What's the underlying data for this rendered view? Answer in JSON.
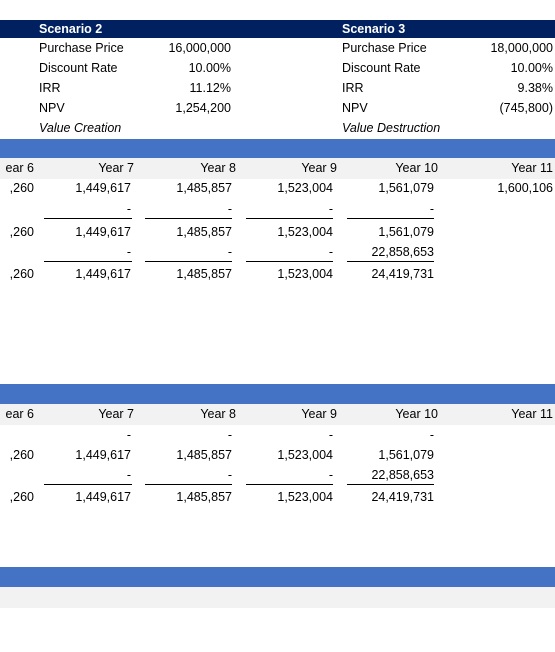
{
  "scenarios": [
    {
      "title": "Scenario 2",
      "rows": [
        [
          "Purchase Price",
          "16,000,000"
        ],
        [
          "Discount Rate",
          "10.00%"
        ],
        [
          "IRR",
          "11.12%"
        ],
        [
          "NPV",
          "1,254,200"
        ]
      ],
      "note": "Value Creation"
    },
    {
      "title": "Scenario 3",
      "rows": [
        [
          "Purchase Price",
          "18,000,000"
        ],
        [
          "Discount Rate",
          "10.00%"
        ],
        [
          "IRR",
          "9.38%"
        ],
        [
          "NPV",
          "(745,800)"
        ]
      ],
      "note": "Value Destruction"
    }
  ],
  "table1": {
    "headers": [
      "ear 6",
      "Year 7",
      "Year 8",
      "Year 9",
      "Year 10",
      "Year 11"
    ],
    "rows": [
      [
        ",260",
        "1,449,617",
        "1,485,857",
        "1,523,004",
        "1,561,079",
        "1,600,106"
      ],
      [
        null,
        "-",
        "-",
        "-",
        "-",
        null
      ],
      [
        ",260",
        "1,449,617",
        "1,485,857",
        "1,523,004",
        "1,561,079",
        null
      ],
      [
        null,
        "-",
        "-",
        "-",
        "22,858,653",
        null
      ],
      [
        ",260",
        "1,449,617",
        "1,485,857",
        "1,523,004",
        "24,419,731",
        null
      ]
    ]
  },
  "table2": {
    "headers": [
      "ear 6",
      "Year 7",
      "Year 8",
      "Year 9",
      "Year 10",
      "Year 11"
    ],
    "rows": [
      [
        null,
        "-",
        "-",
        "-",
        "-",
        null
      ],
      [
        ",260",
        "1,449,617",
        "1,485,857",
        "1,523,004",
        "1,561,079",
        null
      ],
      [
        null,
        "-",
        "-",
        "-",
        "22,858,653",
        null
      ],
      [
        ",260",
        "1,449,617",
        "1,485,857",
        "1,523,004",
        "24,419,731",
        null
      ]
    ]
  }
}
